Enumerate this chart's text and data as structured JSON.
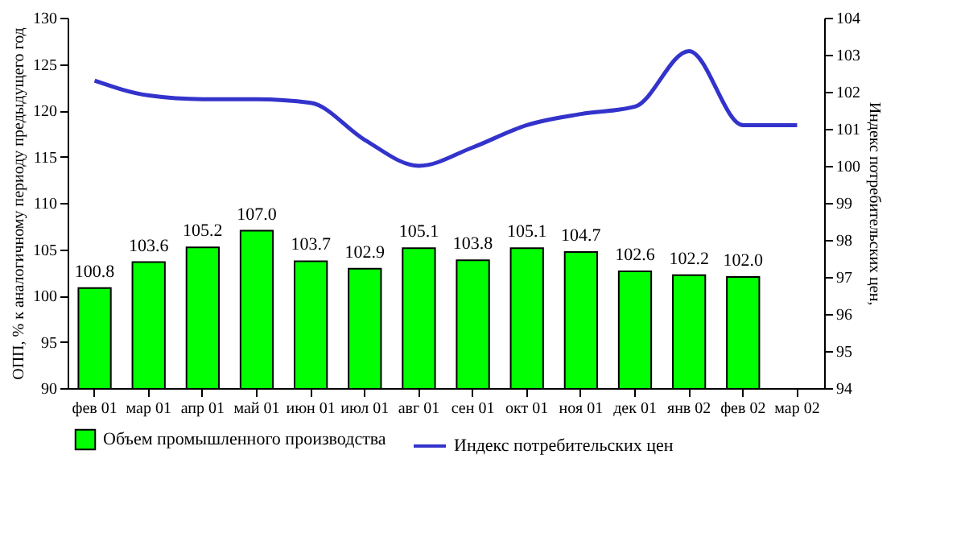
{
  "chart_data": {
    "type": "bar",
    "categories": [
      "фев 01",
      "мар 01",
      "апр 01",
      "май 01",
      "июн 01",
      "июл 01",
      "авг 01",
      "сен 01",
      "окт 01",
      "ноя 01",
      "дек 01",
      "янв 02",
      "фев 02",
      "мар 02"
    ],
    "ylabel": "ОПП, % к аналогичному периоду предыдущего год",
    "y2label": "Индекс потребительских цен,",
    "ylim": [
      90,
      130
    ],
    "yticks": [
      90,
      95,
      100,
      105,
      110,
      115,
      120,
      125,
      130
    ],
    "y2lim": [
      94,
      104
    ],
    "y2ticks": [
      94,
      95,
      96,
      97,
      98,
      99,
      100,
      101,
      102,
      103,
      104
    ],
    "grid": false,
    "legend": "bottom",
    "series": [
      {
        "name": "Объем промышленного производства",
        "color": "#00ff00",
        "values": [
          100.8,
          103.6,
          105.2,
          107.0,
          103.7,
          102.9,
          105.1,
          103.8,
          105.1,
          104.7,
          102.6,
          102.2,
          102.0,
          null
        ],
        "value_labels": [
          "100.8",
          "103.6",
          "105.2",
          "107.0",
          "103.7",
          "102.9",
          "105.1",
          "103.8",
          "105.1",
          "104.7",
          "102.6",
          "102.2",
          "102.0",
          null
        ]
      },
      {
        "name": "Индекс потребительских цен",
        "type": "line",
        "axis": "y2",
        "color": "#3333cc",
        "line_style": "solid",
        "marker": "none",
        "values": [
          102.3,
          101.9,
          101.8,
          101.8,
          101.7,
          100.7,
          100.0,
          100.5,
          101.1,
          101.4,
          101.6,
          103.1,
          101.1,
          101.1
        ]
      }
    ]
  }
}
